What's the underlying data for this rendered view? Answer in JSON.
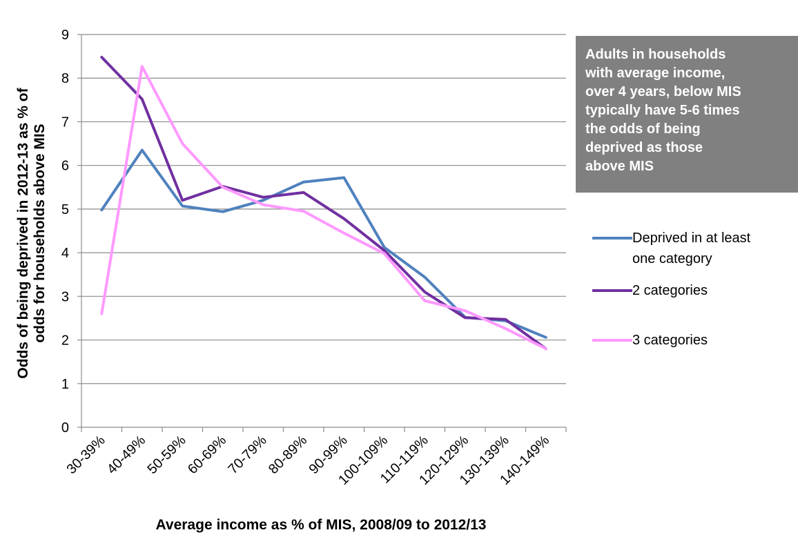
{
  "chart_data": {
    "type": "line",
    "categories": [
      "30-39%",
      "40-49%",
      "50-59%",
      "60-69%",
      "70-79%",
      "80-89%",
      "90-99%",
      "100-109%",
      "110-119%",
      "120-129%",
      "130-139%",
      "140-149%"
    ],
    "series": [
      {
        "name": "Deprived in at least one category",
        "color": "#4F81BD",
        "values": [
          4.98,
          6.35,
          5.07,
          4.94,
          5.2,
          5.62,
          5.72,
          4.12,
          3.44,
          2.52,
          2.44,
          2.06
        ]
      },
      {
        "name": "2 categories",
        "color": "#7030A0",
        "values": [
          8.48,
          7.52,
          5.2,
          5.52,
          5.27,
          5.38,
          4.78,
          4.05,
          3.1,
          2.51,
          2.47,
          1.8
        ]
      },
      {
        "name": "3 categories",
        "color": "#FF99FF",
        "values": [
          2.6,
          8.27,
          6.5,
          5.5,
          5.1,
          4.95,
          4.45,
          3.98,
          2.9,
          2.67,
          2.26,
          1.8
        ]
      }
    ],
    "xlabel": "Average income as % of MIS, 2008/09 to 2012/13",
    "ylabel": "Odds of being deprived in 2012-13 as % of odds for households above MIS",
    "ylabel_lines": [
      "Odds of being deprived in 2012-13  as % of",
      "odds for households above MIS"
    ],
    "ylim": [
      0,
      9
    ],
    "yticks": [
      "0",
      "1",
      "2",
      "3",
      "4",
      "5",
      "6",
      "7",
      "8",
      "9"
    ],
    "grid": true,
    "legend_position": "right"
  },
  "callout": {
    "lines": [
      "Adults in households",
      "with average income,",
      "over 4 years, below MIS",
      "typically have 5-6 times",
      "the odds of being",
      "deprived as those",
      "above MIS"
    ]
  },
  "legend": [
    {
      "lines": [
        "Deprived in at least",
        "one category"
      ],
      "color": "#4F81BD"
    },
    {
      "lines": [
        "2 categories"
      ],
      "color": "#7030A0"
    },
    {
      "lines": [
        "3 categories"
      ],
      "color": "#FF99FF"
    }
  ]
}
